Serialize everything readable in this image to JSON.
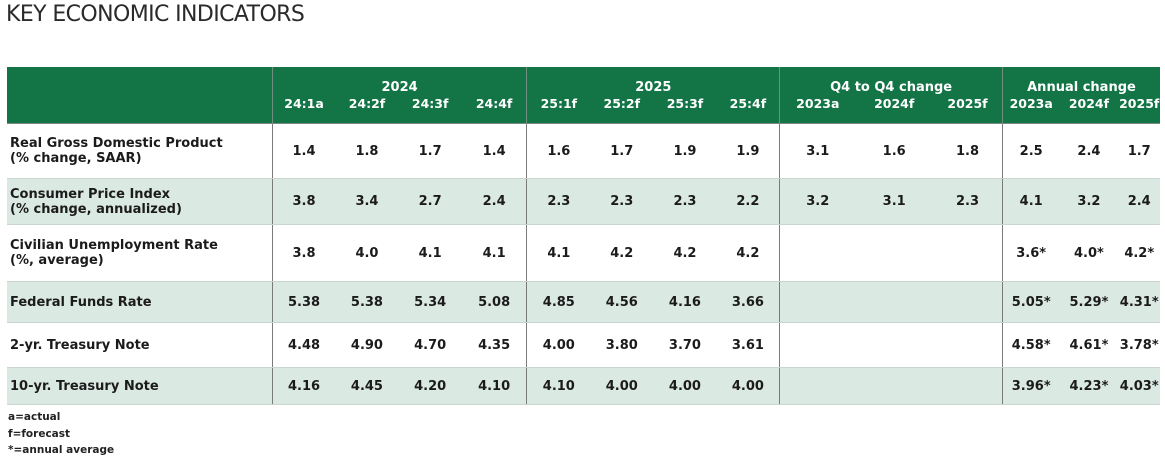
{
  "title": "KEY ECONOMIC INDICATORS",
  "header": {
    "groups": [
      {
        "label": "2024",
        "cols": [
          "24:1a",
          "24:2f",
          "24:3f",
          "24:4f"
        ]
      },
      {
        "label": "2025",
        "cols": [
          "25:1f",
          "25:2f",
          "25:3f",
          "25:4f"
        ]
      },
      {
        "label": "Q4 to Q4 change",
        "cols": [
          "2023a",
          "2024f",
          "2025f"
        ]
      },
      {
        "label": "Annual change",
        "cols": [
          "2023a",
          "2024f",
          "2025f"
        ]
      }
    ]
  },
  "rows": [
    {
      "label1": "Real Gross Domestic Product",
      "label2": "(% change, SAAR)",
      "q2024": [
        "1.4",
        "1.8",
        "1.7",
        "1.4"
      ],
      "q2025": [
        "1.6",
        "1.7",
        "1.9",
        "1.9"
      ],
      "q4q4": [
        "3.1",
        "1.6",
        "1.8"
      ],
      "annual": [
        "2.5",
        "2.4",
        "1.7"
      ]
    },
    {
      "label1": "Consumer Price Index",
      "label2": "(% change, annualized)",
      "q2024": [
        "3.8",
        "3.4",
        "2.7",
        "2.4"
      ],
      "q2025": [
        "2.3",
        "2.3",
        "2.3",
        "2.2"
      ],
      "q4q4": [
        "3.2",
        "3.1",
        "2.3"
      ],
      "annual": [
        "4.1",
        "3.2",
        "2.4"
      ]
    },
    {
      "label1": "Civilian Unemployment Rate",
      "label2": "(%, average)",
      "q2024": [
        "3.8",
        "4.0",
        "4.1",
        "4.1"
      ],
      "q2025": [
        "4.1",
        "4.2",
        "4.2",
        "4.2"
      ],
      "q4q4": [
        "",
        "",
        ""
      ],
      "annual": [
        "3.6*",
        "4.0*",
        "4.2*"
      ]
    },
    {
      "label1": "Federal Funds Rate",
      "label2": "",
      "q2024": [
        "5.38",
        "5.38",
        "5.34",
        "5.08"
      ],
      "q2025": [
        "4.85",
        "4.56",
        "4.16",
        "3.66"
      ],
      "q4q4": [
        "",
        "",
        ""
      ],
      "annual": [
        "5.05*",
        "5.29*",
        "4.31*"
      ]
    },
    {
      "label1": "2-yr. Treasury Note",
      "label2": "",
      "q2024": [
        "4.48",
        "4.90",
        "4.70",
        "4.35"
      ],
      "q2025": [
        "4.00",
        "3.80",
        "3.70",
        "3.61"
      ],
      "q4q4": [
        "",
        "",
        ""
      ],
      "annual": [
        "4.58*",
        "4.61*",
        "3.78*"
      ]
    },
    {
      "label1": "10-yr. Treasury Note",
      "label2": "",
      "q2024": [
        "4.16",
        "4.45",
        "4.20",
        "4.10"
      ],
      "q2025": [
        "4.10",
        "4.00",
        "4.00",
        "4.00"
      ],
      "q4q4": [
        "",
        "",
        ""
      ],
      "annual": [
        "3.96*",
        "4.23*",
        "4.03*"
      ]
    }
  ],
  "footnotes": [
    "a=actual",
    "f=forecast",
    "*=annual average"
  ],
  "colors": {
    "header_green": "#137446",
    "row_tint": "#dbe9e3"
  }
}
